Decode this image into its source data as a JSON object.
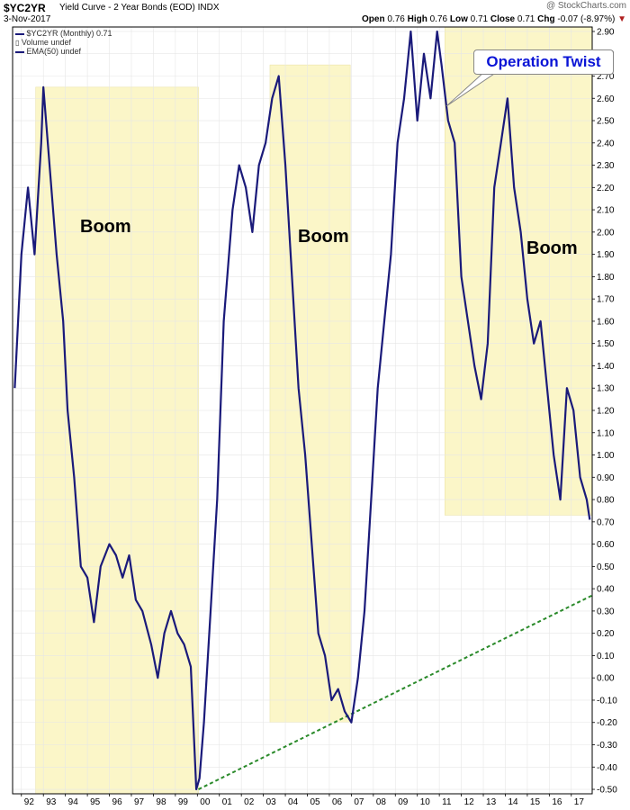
{
  "header": {
    "symbol": "$YC2YR",
    "description": "Yield Curve - 2 Year Bonds (EOD)",
    "exchange": "INDX",
    "date": "3-Nov-2017",
    "watermark": "@ StockCharts.com",
    "open_label": "Open",
    "open": "0.76",
    "high_label": "High",
    "high": "0.76",
    "low_label": "Low",
    "low": "0.71",
    "close_label": "Close",
    "close": "0.71",
    "chg_label": "Chg",
    "chg": "-0.07 (-8.97%)"
  },
  "legend": {
    "line1": "$YC2YR (Monthly) 0.71",
    "line2": "Volume undef",
    "line3": "EMA(50) undef"
  },
  "annotations": {
    "operation_twist": "Operation Twist",
    "boom_1": "Boom",
    "boom_2": "Boom",
    "boom_3": "Boom"
  },
  "colors": {
    "price": "#1a1a7a",
    "shade": "#fbf6c8",
    "trendline": "#2a8a2a",
    "callout_text": "#0a14d6"
  },
  "chart_data": {
    "type": "line",
    "title": "$YC2YR Yield Curve - 2 Year Bonds (EOD)",
    "x_tick_labels": [
      "92",
      "93",
      "94",
      "95",
      "96",
      "97",
      "98",
      "99",
      "00",
      "01",
      "02",
      "03",
      "04",
      "05",
      "06",
      "07",
      "08",
      "09",
      "10",
      "11",
      "12",
      "13",
      "14",
      "15",
      "16",
      "17"
    ],
    "y_tick_labels": [
      "-0.50",
      "-0.40",
      "-0.30",
      "-0.20",
      "-0.10",
      "0.00",
      "0.10",
      "0.20",
      "0.30",
      "0.40",
      "0.50",
      "0.60",
      "0.70",
      "0.80",
      "0.90",
      "1.00",
      "1.10",
      "1.20",
      "1.30",
      "1.40",
      "1.50",
      "1.60",
      "1.70",
      "1.80",
      "1.90",
      "2.00",
      "2.10",
      "2.20",
      "2.30",
      "2.40",
      "2.50",
      "2.60",
      "2.70",
      "2.80",
      "2.90"
    ],
    "ylim": [
      -0.52,
      2.92
    ],
    "xlim": [
      1991.6,
      2017.95
    ],
    "grid": true,
    "series": [
      {
        "name": "$YC2YR (Monthly)",
        "x": [
          1991.7,
          1992.0,
          1992.3,
          1992.6,
          1992.9,
          1993.0,
          1993.2,
          1993.6,
          1993.9,
          1994.1,
          1994.4,
          1994.7,
          1995.0,
          1995.3,
          1995.6,
          1996.0,
          1996.3,
          1996.6,
          1996.9,
          1997.2,
          1997.5,
          1997.9,
          1998.2,
          1998.5,
          1998.8,
          1999.1,
          1999.4,
          1999.7,
          1999.95,
          2000.1,
          2000.3,
          2000.6,
          2000.9,
          2001.2,
          2001.6,
          2001.9,
          2002.2,
          2002.5,
          2002.8,
          2003.1,
          2003.4,
          2003.7,
          2004.0,
          2004.3,
          2004.6,
          2004.9,
          2005.2,
          2005.5,
          2005.8,
          2006.1,
          2006.4,
          2006.7,
          2007.0,
          2007.3,
          2007.6,
          2007.9,
          2008.2,
          2008.5,
          2008.8,
          2009.1,
          2009.4,
          2009.7,
          2010.0,
          2010.3,
          2010.6,
          2010.9,
          2011.1,
          2011.4,
          2011.7,
          2012.0,
          2012.3,
          2012.6,
          2012.9,
          2013.2,
          2013.5,
          2013.8,
          2014.1,
          2014.4,
          2014.7,
          2015.0,
          2015.3,
          2015.6,
          2015.9,
          2016.2,
          2016.5,
          2016.8,
          2017.1,
          2017.4,
          2017.7,
          2017.84
        ],
        "y": [
          1.3,
          1.9,
          2.2,
          1.9,
          2.4,
          2.65,
          2.4,
          1.9,
          1.6,
          1.2,
          0.9,
          0.5,
          0.45,
          0.25,
          0.5,
          0.6,
          0.55,
          0.45,
          0.55,
          0.35,
          0.3,
          0.15,
          0.0,
          0.2,
          0.3,
          0.2,
          0.15,
          0.05,
          -0.5,
          -0.45,
          -0.2,
          0.3,
          0.8,
          1.6,
          2.1,
          2.3,
          2.2,
          2.0,
          2.3,
          2.4,
          2.6,
          2.7,
          2.3,
          1.8,
          1.3,
          1.0,
          0.6,
          0.2,
          0.1,
          -0.1,
          -0.05,
          -0.15,
          -0.2,
          0.0,
          0.3,
          0.8,
          1.3,
          1.6,
          1.9,
          2.4,
          2.6,
          2.9,
          2.5,
          2.8,
          2.6,
          2.9,
          2.75,
          2.5,
          2.4,
          1.8,
          1.6,
          1.4,
          1.25,
          1.5,
          2.2,
          2.4,
          2.6,
          2.2,
          2.0,
          1.7,
          1.5,
          1.6,
          1.3,
          1.0,
          0.8,
          1.3,
          1.2,
          0.9,
          0.8,
          0.71
        ]
      }
    ],
    "shaded_regions": [
      {
        "x": [
          1992.65,
          2000.05
        ],
        "y": [
          -0.52,
          2.65
        ]
      },
      {
        "x": [
          2003.3,
          2006.95
        ],
        "y": [
          -0.2,
          2.75
        ]
      },
      {
        "x": [
          2011.25,
          2017.95
        ],
        "y": [
          0.73,
          2.92
        ]
      }
    ],
    "trendline": {
      "x": [
        2000.05,
        2017.95
      ],
      "y": [
        -0.5,
        0.37
      ]
    }
  }
}
